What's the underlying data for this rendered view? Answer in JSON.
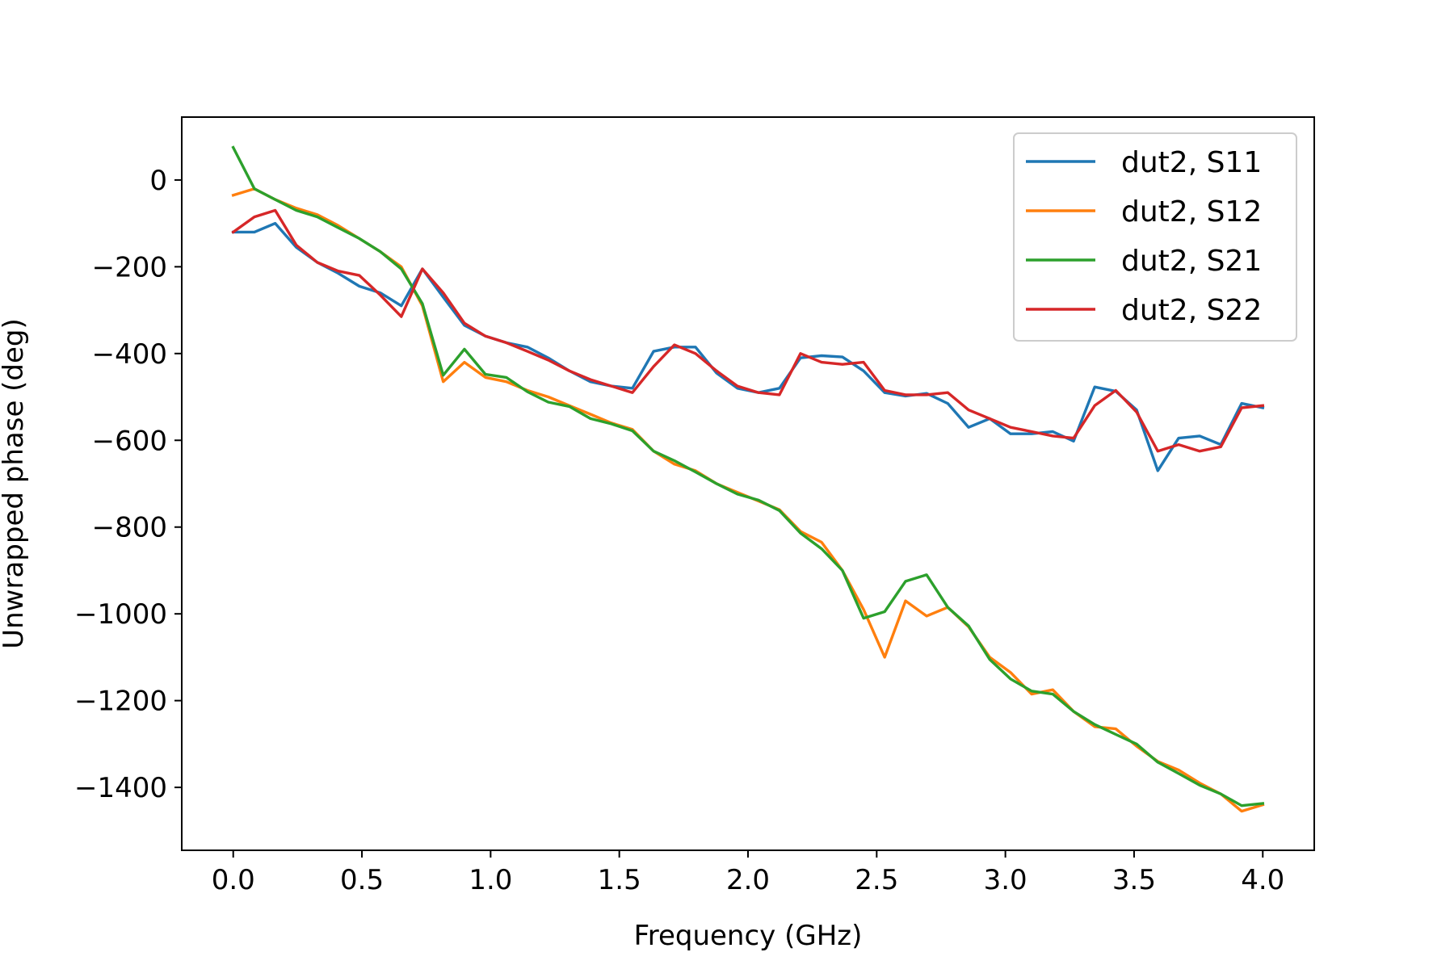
{
  "chart_data": {
    "type": "line",
    "title": "",
    "xlabel": "Frequency (GHz)",
    "ylabel": "Unwrapped phase (deg)",
    "xlim": [
      -0.2,
      4.2
    ],
    "ylim": [
      -1545,
      145
    ],
    "xticks": [
      0.0,
      0.5,
      1.0,
      1.5,
      2.0,
      2.5,
      3.0,
      3.5,
      4.0
    ],
    "xtick_labels": [
      "0.0",
      "0.5",
      "1.0",
      "1.5",
      "2.0",
      "2.5",
      "3.0",
      "3.5",
      "4.0"
    ],
    "yticks": [
      0,
      -200,
      -400,
      -600,
      -800,
      -1000,
      -1200,
      -1400
    ],
    "ytick_labels": [
      "0",
      "−200",
      "−400",
      "−600",
      "−800",
      "−1000",
      "−1200",
      "−1400"
    ],
    "grid": false,
    "legend_position": "top-right",
    "x": [
      0.0,
      0.082,
      0.163,
      0.245,
      0.327,
      0.408,
      0.49,
      0.571,
      0.653,
      0.735,
      0.816,
      0.898,
      0.98,
      1.061,
      1.143,
      1.224,
      1.306,
      1.388,
      1.469,
      1.551,
      1.633,
      1.714,
      1.796,
      1.878,
      1.959,
      2.041,
      2.122,
      2.204,
      2.286,
      2.367,
      2.449,
      2.531,
      2.612,
      2.694,
      2.776,
      2.857,
      2.939,
      3.02,
      3.102,
      3.184,
      3.265,
      3.347,
      3.429,
      3.51,
      3.592,
      3.673,
      3.755,
      3.837,
      3.918,
      4.0
    ],
    "series": [
      {
        "name": "dut2, S11",
        "color": "#1f77b4",
        "values": [
          -120,
          -120,
          -100,
          -155,
          -190,
          -215,
          -245,
          -260,
          -290,
          -205,
          -270,
          -335,
          -360,
          -375,
          -385,
          -410,
          -440,
          -465,
          -475,
          -480,
          -395,
          -385,
          -385,
          -445,
          -480,
          -490,
          -480,
          -410,
          -405,
          -408,
          -440,
          -490,
          -498,
          -492,
          -515,
          -570,
          -550,
          -585,
          -585,
          -580,
          -602,
          -477,
          -487,
          -530,
          -670,
          -595,
          -590,
          -610,
          -515,
          -525
        ]
      },
      {
        "name": "dut2, S12",
        "color": "#ff7f0e",
        "values": [
          -35,
          -20,
          -45,
          -65,
          -80,
          -105,
          -135,
          -165,
          -200,
          -290,
          -465,
          -420,
          -455,
          -465,
          -485,
          -500,
          -520,
          -540,
          -560,
          -575,
          -625,
          -655,
          -670,
          -700,
          -720,
          -740,
          -760,
          -810,
          -835,
          -900,
          -990,
          -1100,
          -970,
          -1005,
          -985,
          -1030,
          -1100,
          -1135,
          -1185,
          -1175,
          -1225,
          -1260,
          -1265,
          -1305,
          -1340,
          -1360,
          -1390,
          -1415,
          -1455,
          -1440
        ]
      },
      {
        "name": "dut2, S21",
        "color": "#2ca02c",
        "values": [
          75,
          -20,
          -45,
          -70,
          -85,
          -110,
          -135,
          -165,
          -205,
          -285,
          -450,
          -390,
          -448,
          -455,
          -488,
          -512,
          -522,
          -550,
          -562,
          -578,
          -625,
          -647,
          -673,
          -700,
          -724,
          -738,
          -762,
          -814,
          -850,
          -900,
          -1010,
          -995,
          -925,
          -910,
          -985,
          -1028,
          -1105,
          -1150,
          -1178,
          -1185,
          -1225,
          -1255,
          -1278,
          -1300,
          -1342,
          -1368,
          -1395,
          -1415,
          -1442,
          -1437
        ]
      },
      {
        "name": "dut2, S22",
        "color": "#d62728",
        "values": [
          -120,
          -85,
          -70,
          -150,
          -190,
          -210,
          -220,
          -265,
          -315,
          -205,
          -260,
          -330,
          -360,
          -375,
          -395,
          -415,
          -440,
          -460,
          -475,
          -490,
          -430,
          -380,
          -400,
          -440,
          -475,
          -490,
          -495,
          -400,
          -420,
          -425,
          -420,
          -485,
          -495,
          -495,
          -490,
          -530,
          -550,
          -570,
          -580,
          -590,
          -595,
          -520,
          -485,
          -535,
          -625,
          -610,
          -625,
          -615,
          -525,
          -520
        ]
      }
    ]
  }
}
